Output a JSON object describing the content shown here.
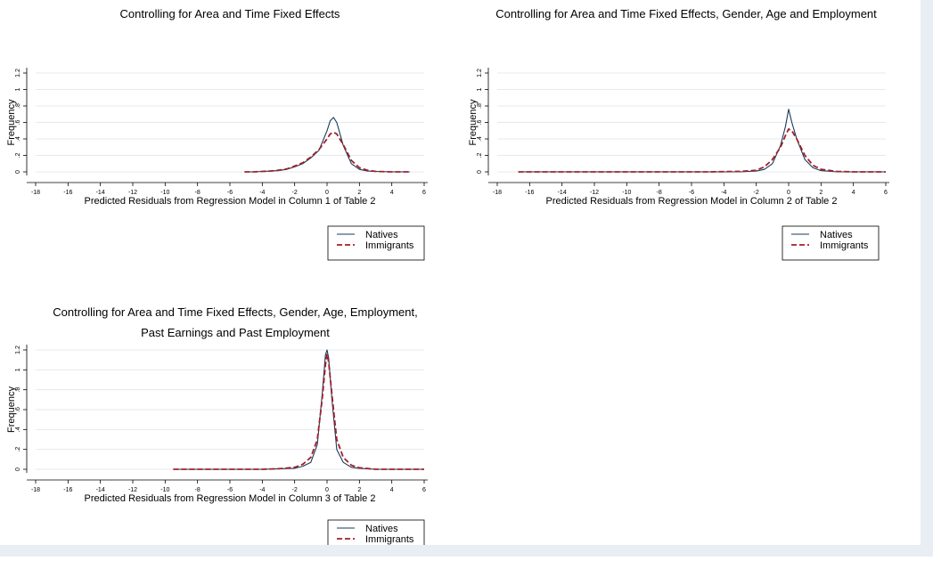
{
  "colors": {
    "natives": "#1a3a5a",
    "immigrants": "#a02028"
  },
  "chart_data": [
    {
      "type": "line",
      "title": "Controlling for Area and Time Fixed Effects",
      "xlabel": "Predicted Residuals from Regression Model in Column 1 of Table 2",
      "ylabel": "Frequency",
      "xlim": [
        -18,
        6
      ],
      "ylim": [
        0,
        1.2
      ],
      "xticks": [
        "-18",
        "-16",
        "-14",
        "-12",
        "-10",
        "-8",
        "-6",
        "-4",
        "-2",
        "0",
        "2",
        "4",
        "6"
      ],
      "yticks": [
        "0",
        ".2",
        ".4",
        ".6",
        ".8",
        "1",
        "1.2"
      ],
      "legend": [
        "Natives",
        "Immigrants"
      ],
      "legend_position": "bottom-right",
      "grid": true,
      "series": [
        {
          "name": "Natives",
          "x": [
            -5.1,
            -4.5,
            -4,
            -3.5,
            -3,
            -2.5,
            -2,
            -1.5,
            -1,
            -0.5,
            0,
            0.2,
            0.4,
            0.6,
            1,
            1.5,
            2,
            2.5,
            3,
            4,
            5.1
          ],
          "y": [
            0,
            0,
            0.005,
            0.01,
            0.015,
            0.03,
            0.06,
            0.1,
            0.17,
            0.26,
            0.5,
            0.62,
            0.66,
            0.6,
            0.32,
            0.1,
            0.03,
            0.01,
            0.005,
            0,
            0
          ]
        },
        {
          "name": "Immigrants",
          "x": [
            -5.1,
            -4.5,
            -4,
            -3.5,
            -3,
            -2.5,
            -2,
            -1.5,
            -1,
            -0.5,
            0,
            0.2,
            0.4,
            0.6,
            1,
            1.5,
            2,
            2.5,
            3,
            4,
            5.1
          ],
          "y": [
            0,
            0,
            0.005,
            0.01,
            0.02,
            0.035,
            0.07,
            0.11,
            0.18,
            0.27,
            0.4,
            0.46,
            0.48,
            0.46,
            0.33,
            0.14,
            0.05,
            0.02,
            0.005,
            0,
            0
          ]
        }
      ]
    },
    {
      "type": "line",
      "title": "Controlling for Area and Time Fixed Effects, Gender, Age and Employment",
      "xlabel": "Predicted Residuals from Regression Model in Column 2 of Table 2",
      "ylabel": "Frequency",
      "xlim": [
        -18,
        6
      ],
      "ylim": [
        0,
        1.2
      ],
      "xticks": [
        "-18",
        "-16",
        "-14",
        "-12",
        "-10",
        "-8",
        "-6",
        "-4",
        "-2",
        "0",
        "2",
        "4",
        "6"
      ],
      "yticks": [
        "0",
        ".2",
        ".4",
        ".6",
        ".8",
        "1",
        "1.2"
      ],
      "legend": [
        "Natives",
        "Immigrants"
      ],
      "legend_position": "bottom-right",
      "grid": true,
      "series": [
        {
          "name": "Natives",
          "x": [
            -16.7,
            -12,
            -8,
            -5,
            -3,
            -2,
            -1.5,
            -1,
            -0.5,
            -0.2,
            0,
            0.2,
            0.5,
            1,
            1.5,
            2,
            3,
            4,
            6
          ],
          "y": [
            0,
            0,
            0,
            0,
            0,
            0.01,
            0.03,
            0.1,
            0.32,
            0.55,
            0.76,
            0.6,
            0.4,
            0.15,
            0.05,
            0.015,
            0,
            0,
            0
          ]
        },
        {
          "name": "Immigrants",
          "x": [
            -16.7,
            -12,
            -8,
            -5,
            -3,
            -2,
            -1.5,
            -1,
            -0.5,
            -0.2,
            0,
            0.2,
            0.5,
            1,
            1.5,
            2,
            3,
            4,
            6
          ],
          "y": [
            0,
            0,
            0,
            0,
            0.005,
            0.02,
            0.06,
            0.15,
            0.3,
            0.44,
            0.52,
            0.5,
            0.4,
            0.2,
            0.08,
            0.03,
            0.005,
            0,
            0
          ]
        }
      ]
    },
    {
      "type": "line",
      "title": "Controlling for Area and Time Fixed Effects, Gender, Age, Employment,",
      "subtitle": "Past Earnings and Past Employment",
      "xlabel": "Predicted Residuals from Regression Model in Column 3 of Table 2",
      "ylabel": "Frequency",
      "xlim": [
        -18,
        6
      ],
      "ylim": [
        0,
        1.2
      ],
      "xticks": [
        "-18",
        "-16",
        "-14",
        "-12",
        "-10",
        "-8",
        "-6",
        "-4",
        "-2",
        "0",
        "2",
        "4",
        "6"
      ],
      "yticks": [
        "0",
        ".2",
        ".4",
        ".6",
        ".8",
        "1",
        "1.2"
      ],
      "legend": [
        "Natives",
        "Immigrants"
      ],
      "legend_position": "bottom-right",
      "grid": true,
      "series": [
        {
          "name": "Natives",
          "x": [
            -9.5,
            -6,
            -4,
            -3,
            -2,
            -1.5,
            -1,
            -0.6,
            -0.3,
            -0.1,
            0,
            0.1,
            0.3,
            0.6,
            1,
            1.5,
            2,
            3,
            4,
            6
          ],
          "y": [
            0,
            0,
            0,
            0.005,
            0.01,
            0.03,
            0.07,
            0.25,
            0.75,
            1.15,
            1.2,
            1.12,
            0.7,
            0.2,
            0.07,
            0.02,
            0.01,
            0,
            0,
            0
          ]
        },
        {
          "name": "Immigrants",
          "x": [
            -9.5,
            -6,
            -4,
            -3,
            -2,
            -1.5,
            -1,
            -0.6,
            -0.3,
            -0.1,
            0,
            0.1,
            0.3,
            0.6,
            1,
            1.5,
            2,
            3,
            4,
            6
          ],
          "y": [
            0,
            0,
            0,
            0.005,
            0.02,
            0.05,
            0.12,
            0.3,
            0.7,
            1.05,
            1.16,
            1.08,
            0.75,
            0.3,
            0.12,
            0.04,
            0.015,
            0,
            0,
            0
          ]
        }
      ]
    }
  ]
}
